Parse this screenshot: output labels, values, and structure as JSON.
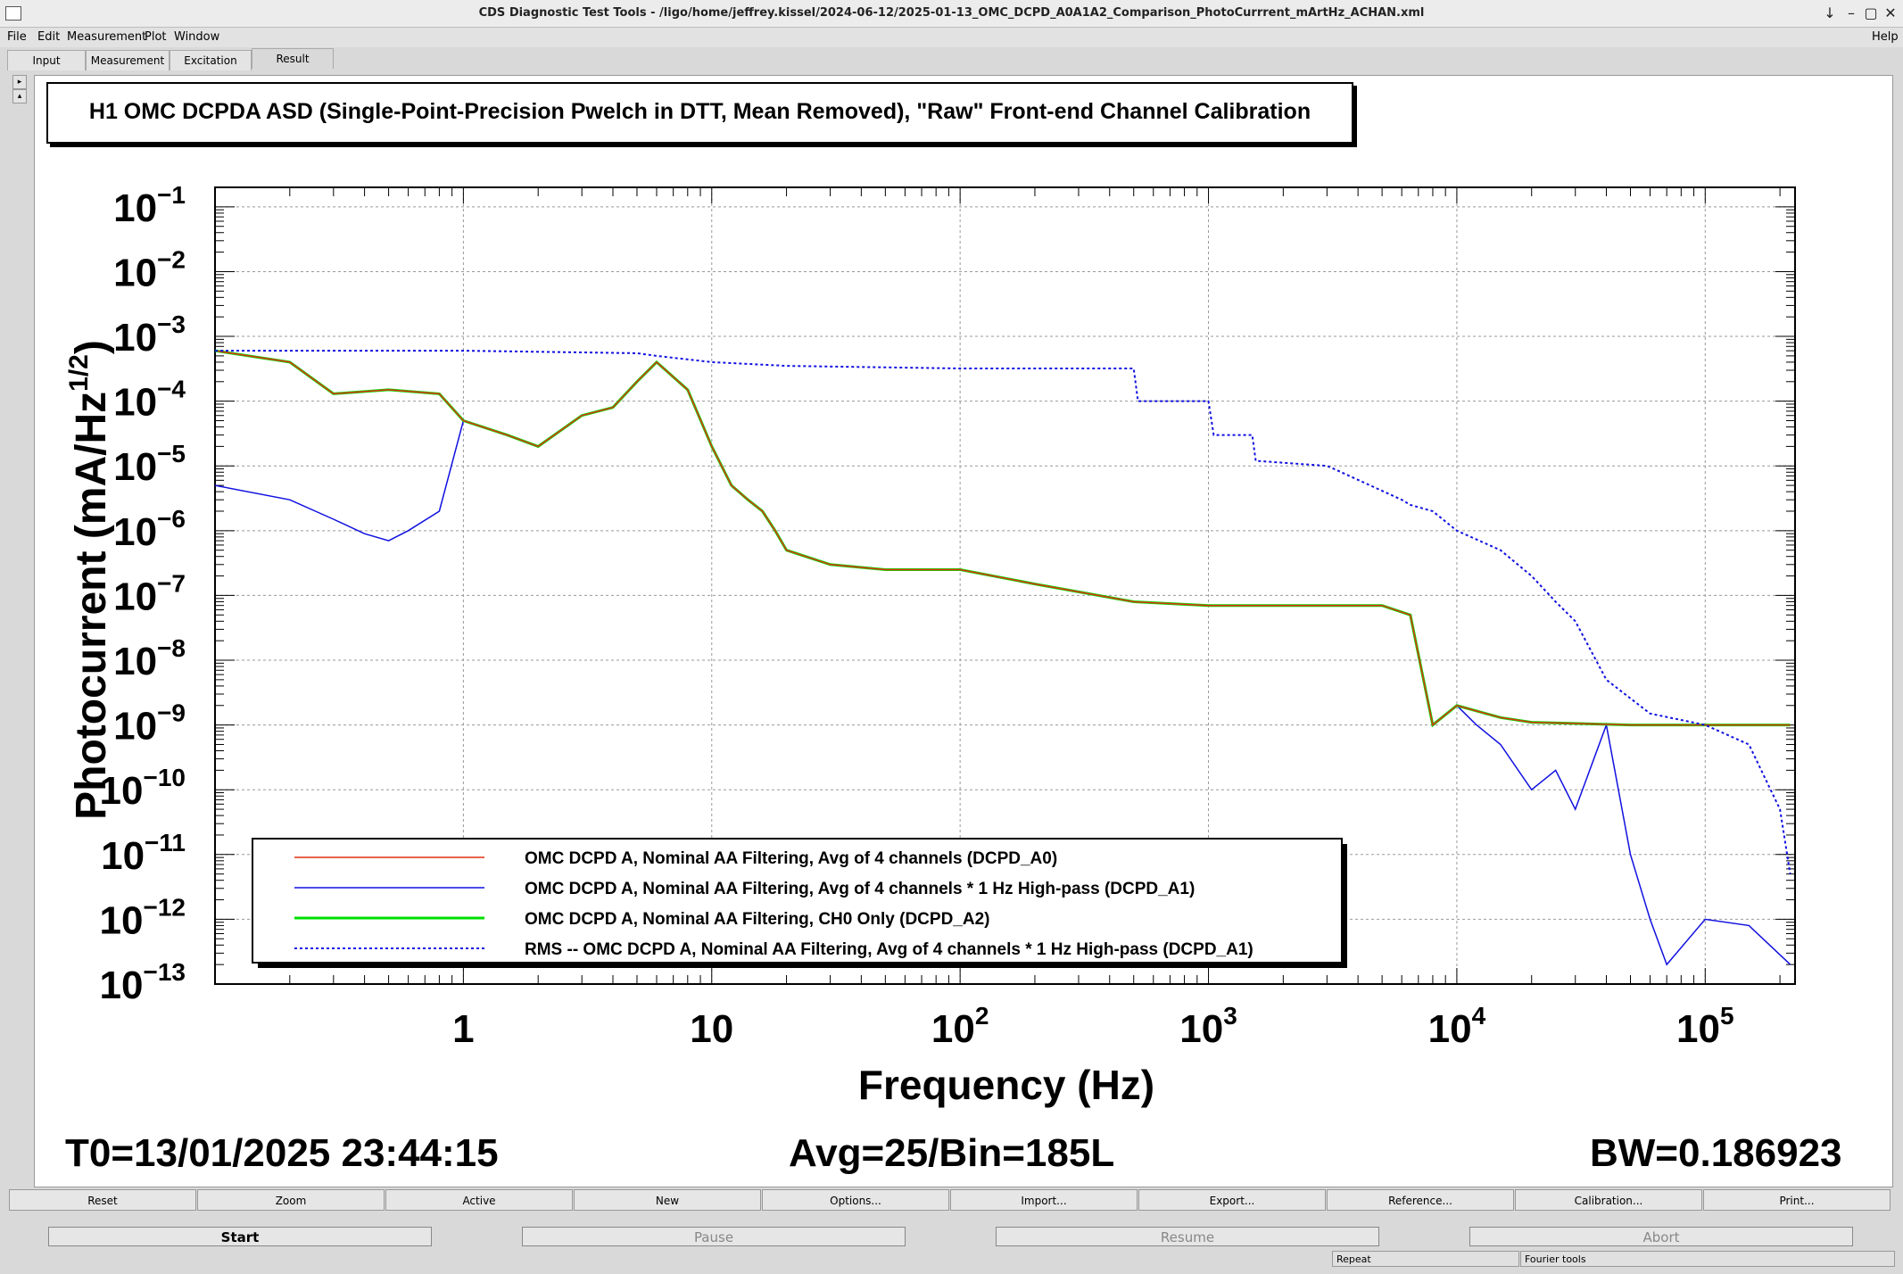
{
  "window": {
    "title": "CDS Diagnostic Test Tools - /ligo/home/jeffrey.kissel/2024-06-12/2025-01-13_OMC_DCPD_A0A1A2_Comparison_PhotoCurrrent_mArtHz_ACHAN.xml",
    "controls": [
      "–",
      "▢",
      "✕"
    ],
    "minimize": "↓",
    "restore": "–"
  },
  "menu": {
    "file": "File",
    "edit": "Edit",
    "measurement": "Measurement",
    "plot": "Plot",
    "window": "Window",
    "help": "Help"
  },
  "tabs": [
    "Input",
    "Measurement",
    "Excitation",
    "Result"
  ],
  "plot": {
    "title": "H1 OMC DCPDA ASD (Single-Point-Precision Pwelch in DTT, Mean Removed), \"Raw\" Front-end Channel Calibration",
    "ylabel": "Photocurrent (mA/Hz",
    "ylabel_sup": "1/2",
    "ylabel_close": ")",
    "xlabel": "Frequency (Hz)",
    "x_ticks": [
      {
        "base": "1",
        "exp": ""
      },
      {
        "base": "10",
        "exp": ""
      },
      {
        "base": "10",
        "exp": "2"
      },
      {
        "base": "10",
        "exp": "3"
      },
      {
        "base": "10",
        "exp": "4"
      },
      {
        "base": "10",
        "exp": "5"
      }
    ],
    "y_ticks": [
      "−1",
      "−2",
      "−3",
      "−4",
      "−5",
      "−6",
      "−7",
      "−8",
      "−9",
      "−10",
      "−11",
      "−12",
      "−13"
    ],
    "t0": "T0=13/01/2025 23:44:15",
    "avg": "Avg=25/Bin=185L",
    "bw": "BW=0.186923"
  },
  "chart_data": {
    "type": "line",
    "x_scale": "log",
    "y_scale": "log",
    "xlim": [
      0.1,
      230000
    ],
    "ylim": [
      1e-13,
      0.2
    ],
    "grid": true,
    "legend_position": "bottom-left",
    "series": [
      {
        "name": "OMC DCPD A, Nominal AA Filtering, Avg of 4 channels (DCPD_A0)",
        "color": "#e03010",
        "style": "solid",
        "x": [
          0.1,
          0.2,
          0.3,
          0.5,
          0.8,
          1,
          1.5,
          2,
          3,
          4,
          5,
          6,
          8,
          10,
          12,
          14,
          16,
          18,
          20,
          30,
          50,
          100,
          200,
          500,
          1000,
          2000,
          5000,
          6500,
          8000,
          10000,
          15000,
          20000,
          50000,
          100000,
          220000
        ],
        "y": [
          0.0006,
          0.0004,
          0.00013,
          0.00015,
          0.00013,
          5e-05,
          3e-05,
          2e-05,
          6e-05,
          8e-05,
          0.0002,
          0.0004,
          0.00015,
          2e-05,
          5e-06,
          3e-06,
          2e-06,
          1e-06,
          5e-07,
          3e-07,
          2.5e-07,
          2.5e-07,
          1.5e-07,
          8e-08,
          7e-08,
          7e-08,
          7e-08,
          5e-08,
          1e-09,
          2e-09,
          1.3e-09,
          1.1e-09,
          1e-09,
          1e-09,
          1e-09
        ]
      },
      {
        "name": "OMC DCPD A, Nominal AA Filtering, Avg of 4 channels * 1 Hz High-pass (DCPD_A1)",
        "color": "#1010e0",
        "style": "solid",
        "x": [
          0.1,
          0.2,
          0.3,
          0.4,
          0.5,
          0.6,
          0.8,
          1,
          1.5,
          2,
          3,
          4,
          5,
          6,
          8,
          10,
          12,
          14,
          16,
          18,
          20,
          30,
          50,
          100,
          200,
          500,
          1000,
          2000,
          5000,
          6500,
          8000,
          10000,
          12000,
          15000,
          20000,
          25000,
          30000,
          40000,
          50000,
          60000,
          70000,
          100000,
          150000,
          220000
        ],
        "y": [
          5e-06,
          3e-06,
          1.5e-06,
          9e-07,
          7e-07,
          1e-06,
          2e-06,
          5e-05,
          3e-05,
          2e-05,
          6e-05,
          8e-05,
          0.0002,
          0.0004,
          0.00015,
          2e-05,
          5e-06,
          3e-06,
          2e-06,
          1e-06,
          5e-07,
          3e-07,
          2.5e-07,
          2.5e-07,
          1.5e-07,
          8e-08,
          7e-08,
          7e-08,
          7e-08,
          5e-08,
          1e-09,
          2e-09,
          1e-09,
          5e-10,
          1e-10,
          2e-10,
          5e-11,
          1e-09,
          1e-11,
          1e-12,
          2e-13,
          1e-12,
          8e-13,
          2e-13
        ]
      },
      {
        "name": "OMC DCPD A, Nominal AA Filtering, CH0 Only (DCPD_A2)",
        "color": "#00e000",
        "style": "solid",
        "x": [
          0.1,
          0.2,
          0.3,
          0.5,
          0.8,
          1,
          1.5,
          2,
          3,
          4,
          5,
          6,
          8,
          10,
          12,
          14,
          16,
          18,
          20,
          30,
          50,
          100,
          200,
          500,
          1000,
          2000,
          5000,
          6500,
          8000,
          10000,
          15000,
          20000,
          50000,
          100000,
          220000
        ],
        "y": [
          0.0006,
          0.0004,
          0.00013,
          0.00015,
          0.00013,
          5e-05,
          3e-05,
          2e-05,
          6e-05,
          8e-05,
          0.0002,
          0.0004,
          0.00015,
          2e-05,
          5e-06,
          3e-06,
          2e-06,
          1e-06,
          5e-07,
          3e-07,
          2.5e-07,
          2.5e-07,
          1.5e-07,
          8e-08,
          7e-08,
          7e-08,
          7e-08,
          5e-08,
          1e-09,
          2e-09,
          1.3e-09,
          1.1e-09,
          1e-09,
          1e-09,
          1e-09
        ]
      },
      {
        "name": "RMS -- OMC DCPD A, Nominal AA Filtering, Avg of 4 channels * 1 Hz High-pass (DCPD_A1)",
        "color": "#1010e0",
        "style": "dotted",
        "x": [
          0.1,
          1,
          5,
          6,
          10,
          20,
          100,
          500,
          520,
          1000,
          1050,
          1500,
          1550,
          3000,
          3200,
          6000,
          6500,
          8000,
          10000,
          15000,
          20000,
          25000,
          30000,
          40000,
          60000,
          100000,
          150000,
          200000,
          220000
        ],
        "y": [
          0.0006,
          0.0006,
          0.00055,
          0.0005,
          0.0004,
          0.00035,
          0.00032,
          0.00032,
          0.0001,
          0.0001,
          3e-05,
          3e-05,
          1.2e-05,
          1e-05,
          9e-06,
          3e-06,
          2.5e-06,
          2e-06,
          1e-06,
          5e-07,
          2e-07,
          8e-08,
          4e-08,
          5e-09,
          1.5e-09,
          1e-09,
          5e-10,
          5e-11,
          5e-12
        ]
      }
    ]
  },
  "toolbar": [
    "Reset",
    "Zoom",
    "Active",
    "New",
    "Options...",
    "Import...",
    "Export...",
    "Reference...",
    "Calibration...",
    "Print..."
  ],
  "controls": [
    "Start",
    "Pause",
    "Resume",
    "Abort"
  ],
  "status": {
    "repeat": "Repeat",
    "fourier": "Fourier tools"
  }
}
